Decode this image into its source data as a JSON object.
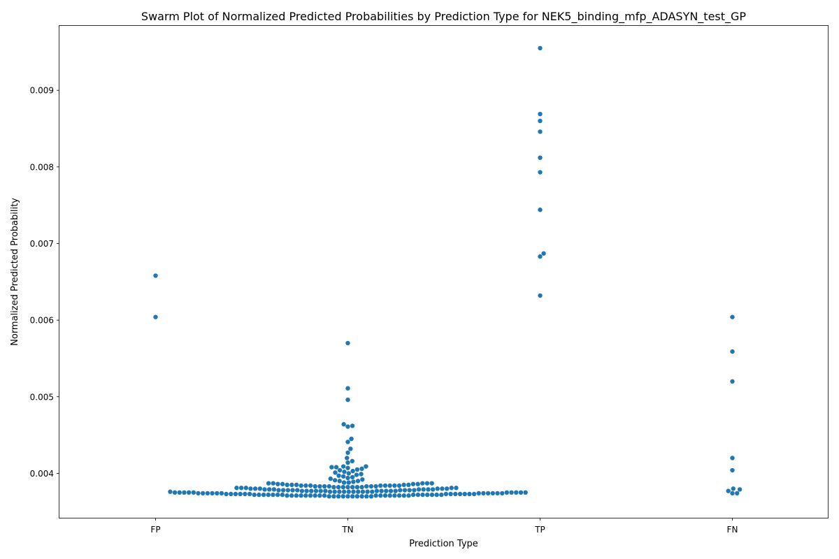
{
  "chart_data": {
    "type": "scatter",
    "subtype": "swarm",
    "title": "Swarm Plot of Normalized Predicted Probabilities by Prediction Type for NEK5_binding_mfp_ADASYN_test_GP",
    "xlabel": "Prediction Type",
    "ylabel": "Normalized Predicted Probability",
    "categories": [
      "FP",
      "TN",
      "TP",
      "FN"
    ],
    "ylim": [
      0.00342,
      0.00985
    ],
    "yticks": [
      0.004,
      0.005,
      0.006,
      0.007,
      0.008,
      0.009
    ],
    "ytick_labels": [
      "0.004",
      "0.005",
      "0.006",
      "0.007",
      "0.008",
      "0.009"
    ],
    "grid": false,
    "legend": "none",
    "marker_color": "#1f77b4",
    "series": [
      {
        "category": "FP",
        "values": [
          0.00658,
          0.00604
        ]
      },
      {
        "category": "TN",
        "values": [
          0.0057,
          0.00511,
          0.00496,
          0.00464,
          0.00462,
          0.00461,
          0.00445,
          0.00441,
          0.00432,
          0.00427,
          0.0042,
          0.00416,
          0.00414,
          0.00409,
          0.00409,
          0.00408,
          0.00408,
          0.00407,
          0.00406,
          0.00405,
          0.00404,
          0.00403,
          0.00402,
          0.00401,
          0.004,
          0.00399,
          0.00398,
          0.00397,
          0.00396,
          0.00395,
          0.00394,
          0.00393,
          0.00392,
          0.00391,
          0.0039,
          0.0039,
          0.00389,
          0.00388,
          0.00388,
          0.00387,
          0.00387,
          0.00387,
          0.00387,
          0.00387,
          0.00386,
          0.00386,
          0.00386,
          0.00386,
          0.00385,
          0.00385,
          0.00385,
          0.00385,
          0.00385,
          0.00384,
          0.00384,
          0.00384,
          0.00384,
          0.00384,
          0.00384,
          0.00384,
          0.00384,
          0.00383,
          0.00383,
          0.00383,
          0.00383,
          0.00383,
          0.00383,
          0.00383,
          0.00382,
          0.00382,
          0.00382,
          0.00382,
          0.00382,
          0.00382,
          0.00382,
          0.00381,
          0.00381,
          0.00381,
          0.00381,
          0.00381,
          0.0038,
          0.0038,
          0.0038,
          0.0038,
          0.0038,
          0.0038,
          0.00379,
          0.00379,
          0.00379,
          0.00379,
          0.00379,
          0.00379,
          0.00379,
          0.00378,
          0.00378,
          0.00378,
          0.00378,
          0.00378,
          0.00378,
          0.00378,
          0.00378,
          0.00378,
          0.00377,
          0.00377,
          0.00377,
          0.00377,
          0.00377,
          0.00377,
          0.00377,
          0.00377,
          0.00377,
          0.00377,
          0.00377,
          0.00376,
          0.00376,
          0.00376,
          0.00376,
          0.00376,
          0.00376,
          0.00376,
          0.00376,
          0.00376,
          0.00376,
          0.00376,
          0.00375,
          0.00375,
          0.00375,
          0.00375,
          0.00375,
          0.00375,
          0.00375,
          0.00375,
          0.00375,
          0.00375,
          0.00374,
          0.00374,
          0.00374,
          0.00374,
          0.00374,
          0.00374,
          0.00374,
          0.00374,
          0.00374,
          0.00374,
          0.00374,
          0.00374,
          0.00373,
          0.00373,
          0.00373,
          0.00373,
          0.00373,
          0.00373,
          0.00373,
          0.00373,
          0.00373,
          0.00373,
          0.00373,
          0.00373,
          0.00373,
          0.00372,
          0.00372,
          0.00372,
          0.00372,
          0.00372,
          0.00372,
          0.00372,
          0.00372,
          0.00372,
          0.00372,
          0.00372,
          0.00372,
          0.00372,
          0.00372,
          0.00371,
          0.00371,
          0.00371,
          0.00371,
          0.00371,
          0.00371,
          0.00371,
          0.00371,
          0.00371,
          0.00371,
          0.00371,
          0.00371,
          0.00371,
          0.00371,
          0.00371,
          0.00371,
          0.00371,
          0.0037,
          0.0037,
          0.0037,
          0.0037,
          0.0037,
          0.0037,
          0.0037,
          0.0037,
          0.0037,
          0.0037
        ]
      },
      {
        "category": "TP",
        "values": [
          0.00955,
          0.00869,
          0.0086,
          0.00846,
          0.00812,
          0.00793,
          0.00744,
          0.00687,
          0.00683,
          0.00632
        ]
      },
      {
        "category": "FN",
        "values": [
          0.00604,
          0.00559,
          0.0052,
          0.0042,
          0.00404,
          0.0038,
          0.00379,
          0.00377,
          0.00374,
          0.00374
        ]
      }
    ]
  }
}
